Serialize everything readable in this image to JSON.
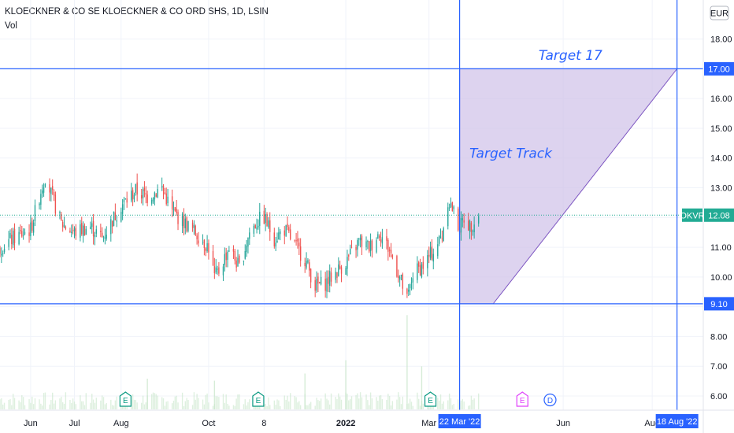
{
  "header": {
    "title": "KLOECKNER & CO SE KLOECKNER & CO ORD SHS, 1D, LSIN",
    "vol_label": "Vol"
  },
  "currency": "EUR",
  "chart_data": {
    "type": "candlestick",
    "symbol": "KLOECKNER & CO SE KLOECKNER & CO ORD SHS",
    "interval": "1D",
    "exchange": "LSIN",
    "y_axis_ticks": [
      6.0,
      7.0,
      8.0,
      9.0,
      10.0,
      11.0,
      12.0,
      13.0,
      14.0,
      15.0,
      16.0,
      17.0,
      18.0
    ],
    "y_tick_labels": [
      "6.00",
      "7.00",
      "8.00",
      "9.00",
      "10.00",
      "11.00",
      "12.00",
      "13.00",
      "14.00",
      "15.00",
      "16.00",
      "17.00",
      "18.00"
    ],
    "ylim": [
      5.6,
      18.8
    ],
    "x_labels": [
      {
        "label": "Jun",
        "date": "2021-06-01"
      },
      {
        "label": "Jul",
        "date": "2021-07-01"
      },
      {
        "label": "Aug",
        "date": "2021-08-02"
      },
      {
        "label": "Oct",
        "date": "2021-10-01"
      },
      {
        "label": "8",
        "date": "2021-11-08"
      },
      {
        "label": "2022",
        "date": "2022-01-03"
      },
      {
        "label": "Mar",
        "date": "2022-03-01"
      },
      {
        "label": "Jun",
        "date": "2022-06-01"
      },
      {
        "label": "Aug",
        "date": "2022-08-01"
      }
    ],
    "x_range": [
      "2021-05-11",
      "2022-09-05"
    ],
    "price_path": [
      [
        "2021-05-11",
        11.0
      ],
      [
        "2021-05-20",
        11.3
      ],
      [
        "2021-06-01",
        11.6
      ],
      [
        "2021-06-08",
        12.9
      ],
      [
        "2021-06-11",
        13.4
      ],
      [
        "2021-06-15",
        12.8
      ],
      [
        "2021-06-22",
        11.8
      ],
      [
        "2021-07-01",
        11.5
      ],
      [
        "2021-07-12",
        11.7
      ],
      [
        "2021-07-20",
        11.3
      ],
      [
        "2021-07-28",
        12.0
      ],
      [
        "2021-08-02",
        12.4
      ],
      [
        "2021-08-12",
        12.9
      ],
      [
        "2021-08-20",
        12.7
      ],
      [
        "2021-08-30",
        13.0
      ],
      [
        "2021-09-06",
        12.2
      ],
      [
        "2021-09-15",
        11.8
      ],
      [
        "2021-09-24",
        11.4
      ],
      [
        "2021-10-01",
        11.0
      ],
      [
        "2021-10-05",
        10.0
      ],
      [
        "2021-10-08",
        10.2
      ],
      [
        "2021-10-15",
        11.0
      ],
      [
        "2021-10-22",
        10.3
      ],
      [
        "2021-10-29",
        11.5
      ],
      [
        "2021-11-04",
        11.9
      ],
      [
        "2021-11-08",
        12.0
      ],
      [
        "2021-11-15",
        11.3
      ],
      [
        "2021-11-22",
        11.6
      ],
      [
        "2021-11-29",
        11.1
      ],
      [
        "2021-12-06",
        10.6
      ],
      [
        "2021-12-13",
        9.7
      ],
      [
        "2021-12-20",
        9.8
      ],
      [
        "2022-01-03",
        10.5
      ],
      [
        "2022-01-12",
        11.2
      ],
      [
        "2022-01-19",
        11.0
      ],
      [
        "2022-01-26",
        11.5
      ],
      [
        "2022-02-02",
        10.9
      ],
      [
        "2022-02-09",
        10.0
      ],
      [
        "2022-02-14",
        9.2
      ],
      [
        "2022-02-18",
        10.1
      ],
      [
        "2022-02-25",
        10.4
      ],
      [
        "2022-03-03",
        10.8
      ],
      [
        "2022-03-10",
        11.4
      ],
      [
        "2022-03-14",
        12.6
      ],
      [
        "2022-03-17",
        12.3
      ],
      [
        "2022-03-22",
        11.6
      ],
      [
        "2022-03-25",
        12.0
      ],
      [
        "2022-03-29",
        11.7
      ],
      [
        "2022-04-04",
        12.08
      ]
    ],
    "volume_spikes": [
      {
        "date": "2022-02-14",
        "level": 0.92
      },
      {
        "date": "2022-01-03",
        "level": 0.48
      },
      {
        "date": "2021-12-06",
        "level": 0.35
      },
      {
        "date": "2022-02-24",
        "level": 0.42
      },
      {
        "date": "2021-08-20",
        "level": 0.3
      },
      {
        "date": "2021-10-05",
        "level": 0.28
      }
    ],
    "horizontal_lines": [
      {
        "price": 17.0,
        "label": "17.00"
      },
      {
        "price": 9.1,
        "label": "9.10"
      }
    ],
    "vertical_lines": [
      {
        "date": "2022-03-22",
        "label": "22 Mar '22"
      },
      {
        "date": "2022-08-18",
        "label": "18 Aug '22"
      }
    ],
    "current_price": {
      "price": 12.08,
      "label": "12.08",
      "symbol_tag": "OKVR"
    },
    "target_zone": {
      "points": [
        [
          "2022-03-22",
          17.0
        ],
        [
          "2022-08-18",
          17.0
        ],
        [
          "2022-04-14",
          9.1
        ],
        [
          "2022-03-22",
          9.1
        ]
      ],
      "color": "#d1c4e9"
    },
    "annotations": [
      {
        "text": "Target 17",
        "date": "2022-06-06",
        "price": 17.3
      },
      {
        "text": "Target Track",
        "date": "2022-04-26",
        "price": 14.0
      }
    ],
    "events": [
      {
        "type": "earnings",
        "glyph": "E",
        "date": "2021-08-05",
        "color": "#089981"
      },
      {
        "type": "earnings",
        "glyph": "E",
        "date": "2021-11-04",
        "color": "#089981"
      },
      {
        "type": "earnings",
        "glyph": "E",
        "date": "2022-03-02",
        "color": "#089981"
      },
      {
        "type": "earnings",
        "glyph": "E",
        "date": "2022-05-04",
        "color": "#e040fb"
      },
      {
        "type": "dividend",
        "glyph": "D",
        "date": "2022-05-23",
        "color": "#2962ff"
      }
    ],
    "colors": {
      "up": "#26a69a",
      "down": "#ef5350",
      "line": "#2962ff",
      "grid": "#f0f3fa",
      "current_price": "#22ab94"
    }
  }
}
